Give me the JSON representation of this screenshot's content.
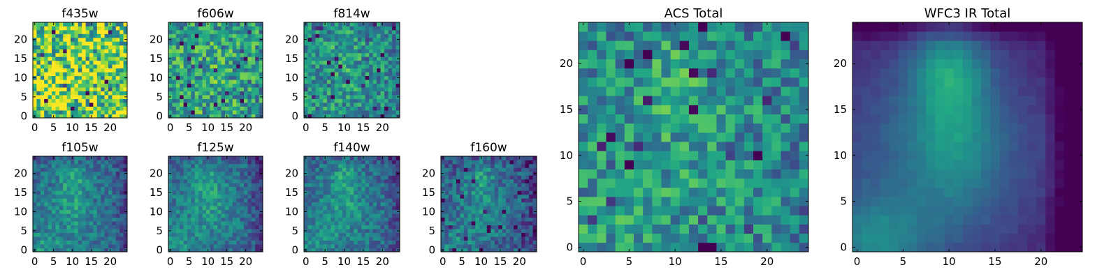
{
  "chart_data": [
    {
      "type": "heatmap",
      "title": "f435w",
      "colormap": "viridis",
      "grid_size": 25,
      "xlim": [
        -0.5,
        24.5
      ],
      "ylim": [
        -0.5,
        24.5
      ],
      "xticks": [
        0,
        5,
        10,
        15,
        20
      ],
      "yticks": [
        0,
        5,
        10,
        15,
        20
      ],
      "smoothness": 0.15,
      "noise": 0.85,
      "background": 0.78,
      "blob": 0.2,
      "seed": 11
    },
    {
      "type": "heatmap",
      "title": "f606w",
      "colormap": "viridis",
      "grid_size": 25,
      "xlim": [
        -0.5,
        24.5
      ],
      "ylim": [
        -0.5,
        24.5
      ],
      "xticks": [
        0,
        5,
        10,
        15,
        20
      ],
      "yticks": [
        0,
        5,
        10,
        15,
        20
      ],
      "smoothness": 0.3,
      "noise": 0.55,
      "background": 0.55,
      "blob": 0.35,
      "seed": 23
    },
    {
      "type": "heatmap",
      "title": "f814w",
      "colormap": "viridis",
      "grid_size": 25,
      "xlim": [
        -0.5,
        24.5
      ],
      "ylim": [
        -0.5,
        24.5
      ],
      "xticks": [
        0,
        5,
        10,
        15,
        20
      ],
      "yticks": [
        0,
        5,
        10,
        15,
        20
      ],
      "smoothness": 0.45,
      "noise": 0.45,
      "background": 0.45,
      "blob": 0.5,
      "seed": 37
    },
    {
      "type": "heatmap",
      "title": "f105w",
      "colormap": "viridis",
      "grid_size": 25,
      "xlim": [
        -0.5,
        24.5
      ],
      "ylim": [
        -0.5,
        24.5
      ],
      "xticks": [
        0,
        5,
        10,
        15,
        20
      ],
      "yticks": [
        0,
        5,
        10,
        15,
        20
      ],
      "smoothness": 0.65,
      "noise": 0.3,
      "background": 0.3,
      "blob": 0.75,
      "seed": 41
    },
    {
      "type": "heatmap",
      "title": "f125w",
      "colormap": "viridis",
      "grid_size": 25,
      "xlim": [
        -0.5,
        24.5
      ],
      "ylim": [
        -0.5,
        24.5
      ],
      "xticks": [
        0,
        5,
        10,
        15,
        20
      ],
      "yticks": [
        0,
        5,
        10,
        15,
        20
      ],
      "smoothness": 0.65,
      "noise": 0.3,
      "background": 0.3,
      "blob": 0.75,
      "seed": 53
    },
    {
      "type": "heatmap",
      "title": "f140w",
      "colormap": "viridis",
      "grid_size": 25,
      "xlim": [
        -0.5,
        24.5
      ],
      "ylim": [
        -0.5,
        24.5
      ],
      "xticks": [
        0,
        5,
        10,
        15,
        20
      ],
      "yticks": [
        0,
        5,
        10,
        15,
        20
      ],
      "smoothness": 0.65,
      "noise": 0.3,
      "background": 0.3,
      "blob": 0.75,
      "seed": 67
    },
    {
      "type": "heatmap",
      "title": "f160w",
      "colormap": "viridis",
      "grid_size": 25,
      "xlim": [
        -0.5,
        24.5
      ],
      "ylim": [
        -0.5,
        24.5
      ],
      "xticks": [
        0,
        5,
        10,
        15,
        20
      ],
      "yticks": [
        0,
        5,
        10,
        15,
        20
      ],
      "smoothness": 0.65,
      "noise": 0.35,
      "background": 0.25,
      "blob": 0.75,
      "seed": 79
    },
    {
      "type": "heatmap",
      "title": "ACS Total",
      "colormap": "viridis",
      "grid_size": 25,
      "xlim": [
        -0.5,
        24.5
      ],
      "ylim": [
        -0.5,
        24.5
      ],
      "xticks": [
        0,
        5,
        10,
        15,
        20
      ],
      "yticks": [
        0,
        5,
        10,
        15,
        20
      ],
      "smoothness": 0.45,
      "noise": 0.45,
      "background": 0.45,
      "blob": 0.5,
      "seed": 97
    },
    {
      "type": "heatmap",
      "title": "WFC3 IR Total",
      "colormap": "viridis",
      "grid_size": 25,
      "xlim": [
        -0.5,
        24.5
      ],
      "ylim": [
        -0.5,
        24.5
      ],
      "xticks": [
        0,
        5,
        10,
        15,
        20
      ],
      "yticks": [
        0,
        5,
        10,
        15,
        20
      ],
      "smoothness": 1.0,
      "noise": 0.05,
      "background": 0.05,
      "blob": 1.0,
      "seed": 5
    }
  ]
}
